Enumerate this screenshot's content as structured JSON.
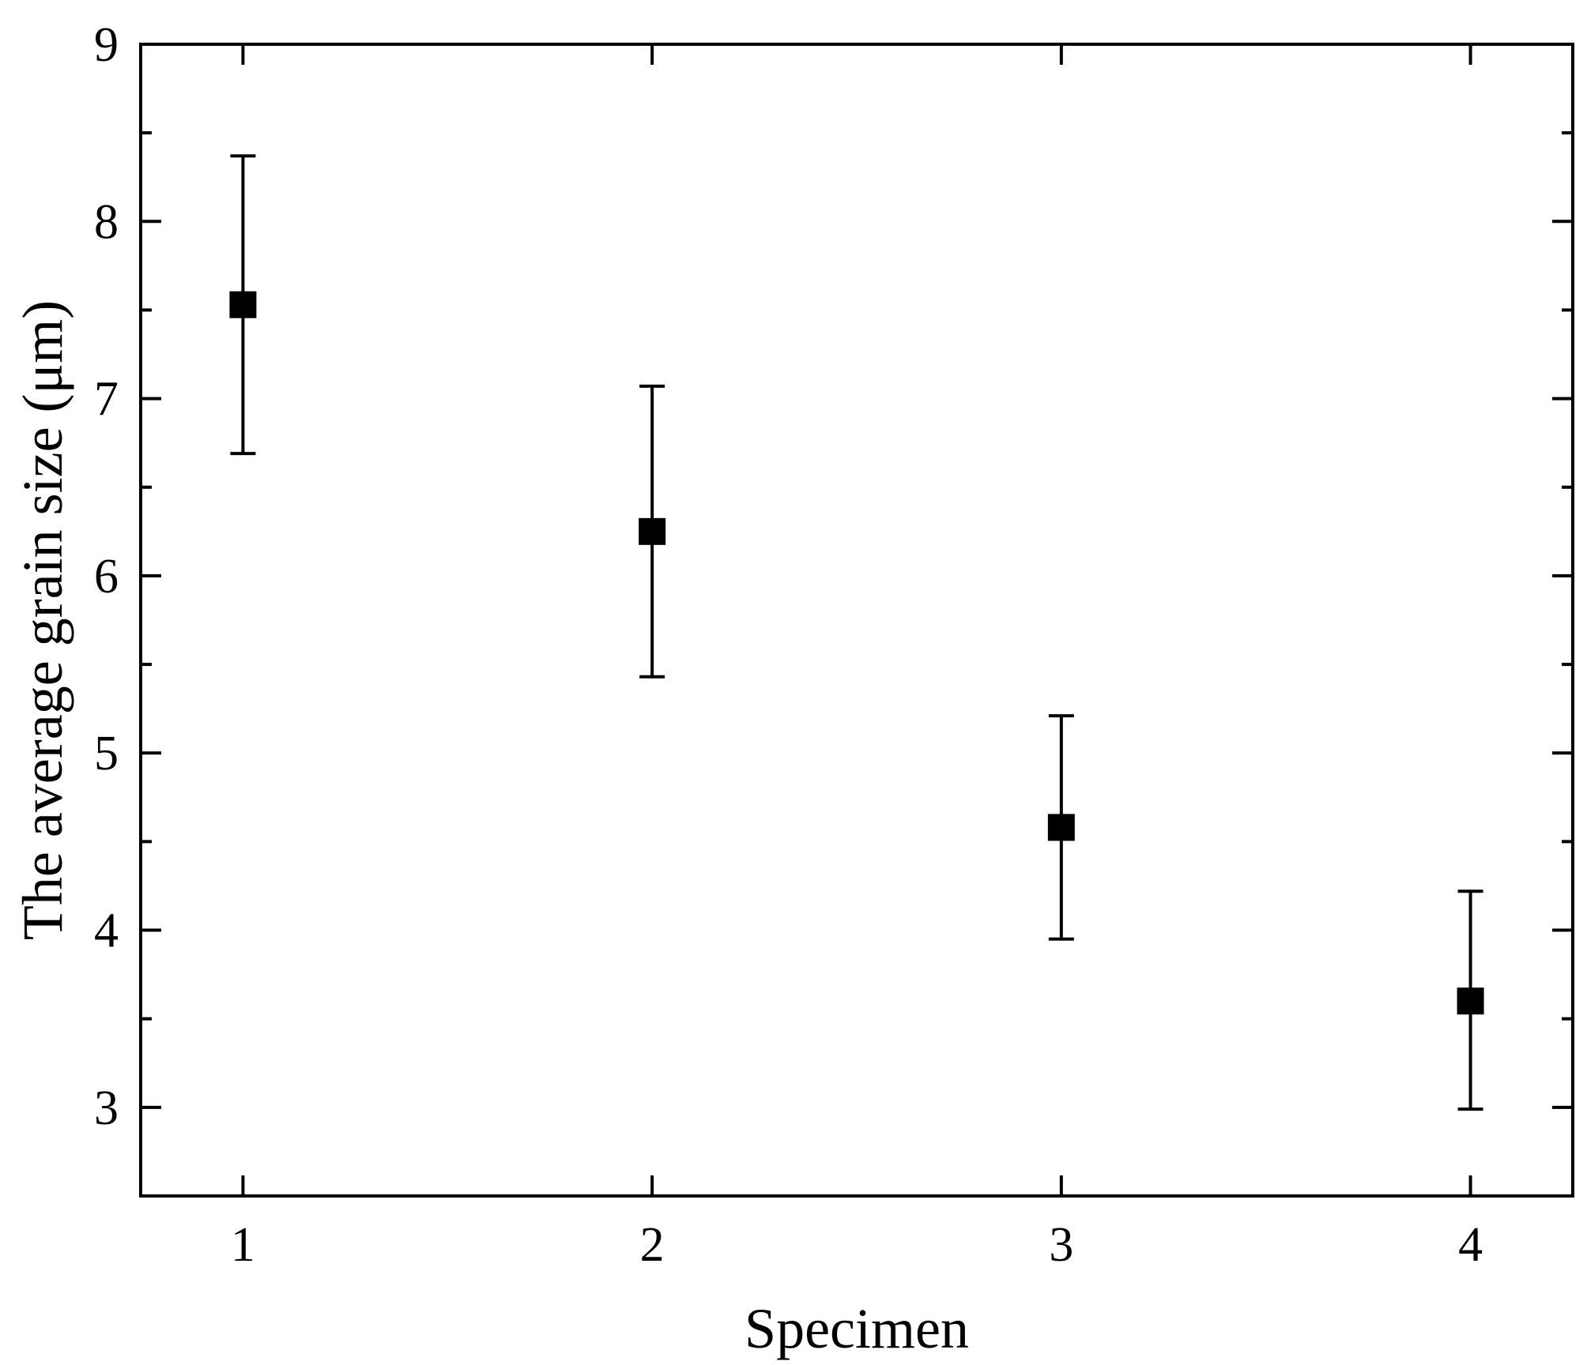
{
  "chart_data": {
    "type": "scatter",
    "xlabel": "Specimen",
    "ylabel": "The average grain size (μm)",
    "xlim": [
      0.75,
      4.25
    ],
    "ylim": [
      2.5,
      9
    ],
    "xticks": [
      "1",
      "2",
      "3",
      "4"
    ],
    "yticks": [
      "3",
      "4",
      "5",
      "6",
      "7",
      "8",
      "9"
    ],
    "marker": "square",
    "color": "#000000",
    "grid": false,
    "series": [
      {
        "points": [
          {
            "x": 1,
            "y": 7.53,
            "err_low": 6.69,
            "err_high": 8.37
          },
          {
            "x": 2,
            "y": 6.25,
            "err_low": 5.43,
            "err_high": 7.07
          },
          {
            "x": 3,
            "y": 4.58,
            "err_low": 3.95,
            "err_high": 5.21
          },
          {
            "x": 4,
            "y": 3.6,
            "err_low": 2.99,
            "err_high": 4.22
          }
        ]
      }
    ]
  }
}
